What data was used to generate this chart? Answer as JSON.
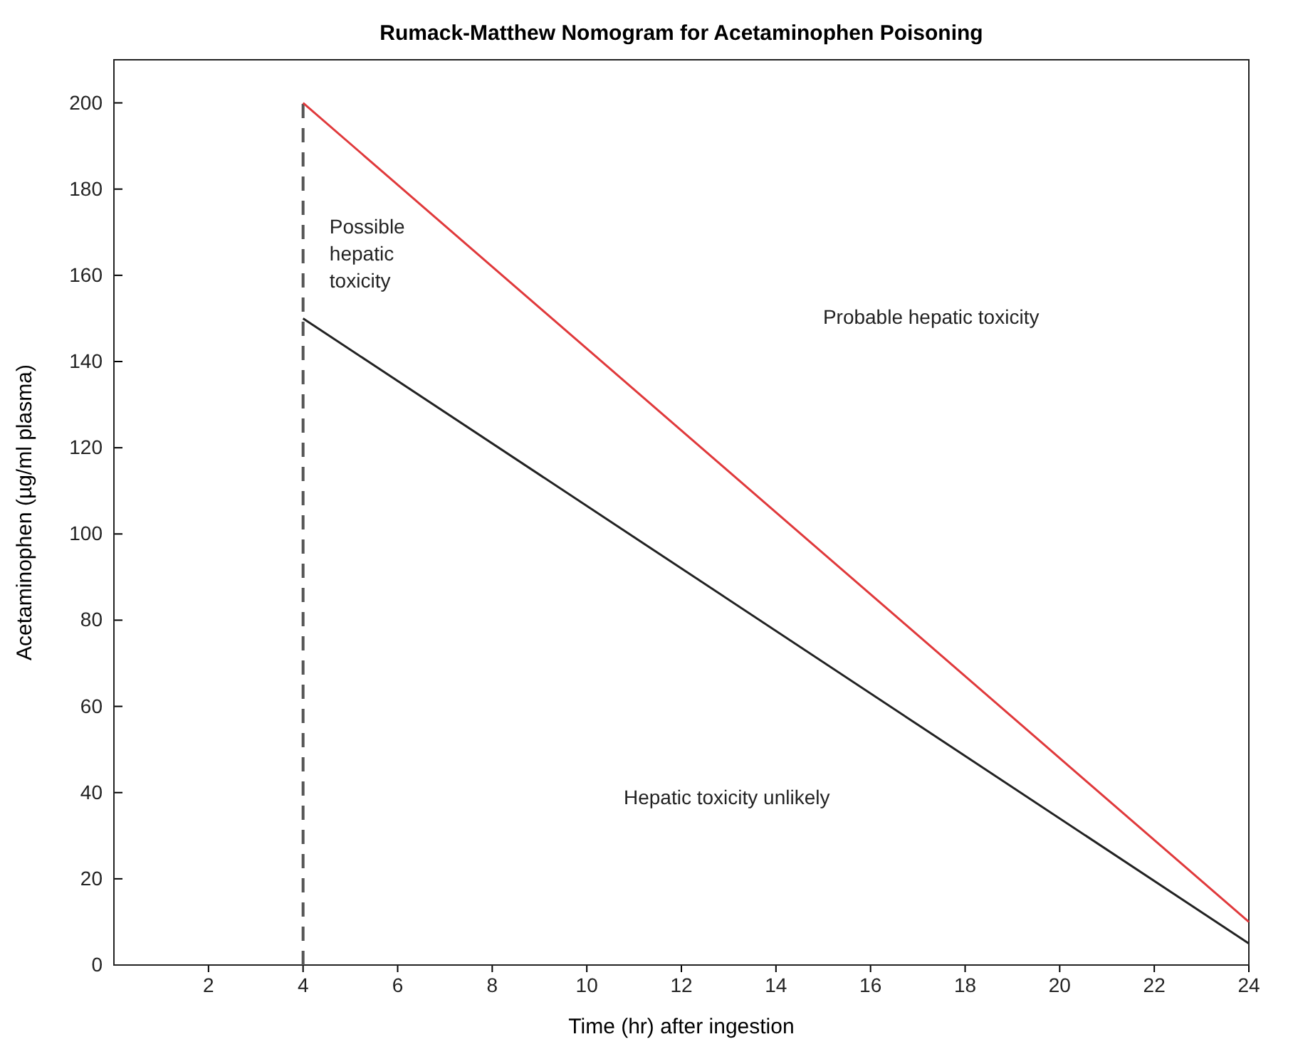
{
  "chart_data": {
    "type": "line",
    "title": "Rumack-Matthew Nomogram for Acetaminophen Poisoning",
    "xlabel": "Time (hr) after ingestion",
    "ylabel": "Acetaminophen (µg/ml plasma)",
    "xlim": [
      0,
      24
    ],
    "xticks": [
      2,
      4,
      6,
      8,
      10,
      12,
      14,
      16,
      18,
      20,
      22,
      24
    ],
    "ylim": [
      0,
      210
    ],
    "yticks": [
      0,
      20,
      40,
      60,
      80,
      100,
      120,
      140,
      160,
      180,
      200
    ],
    "marker": "none",
    "series": [
      {
        "color": "#e0393b",
        "values": [
          200,
          10
        ],
        "line_style": "solid"
      },
      {
        "color": "#222222",
        "values": [
          150,
          5
        ],
        "line_style": "solid"
      }
    ],
    "x": [
      4,
      24
    ],
    "ref_lines": [
      {
        "axis": "x",
        "value": 4,
        "color": "#555555",
        "line_style": "dashed"
      }
    ],
    "annotations": [
      "Possible\nhepatic\ntoxicity",
      "Probable hepatic toxicity",
      "Hepatic toxicity unlikely"
    ]
  }
}
